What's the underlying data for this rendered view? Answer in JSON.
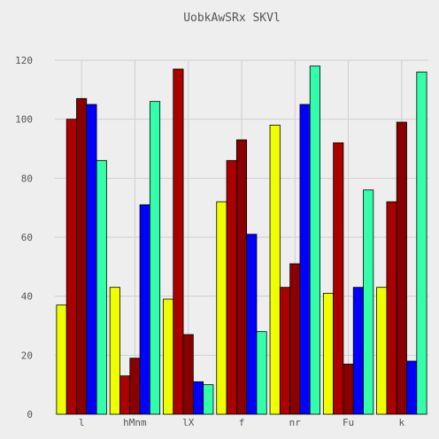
{
  "chart_data": {
    "type": "bar",
    "title": "UobkAwSRx SKVl",
    "xlabel": "",
    "ylabel": "",
    "categories": [
      "l",
      "hMnm",
      "lX",
      "f",
      "nr",
      "Fu",
      "k"
    ],
    "series": [
      {
        "color": "#eeff00",
        "values": [
          37,
          43,
          39,
          72,
          98,
          41,
          43
        ]
      },
      {
        "color": "#aa0000",
        "values": [
          100,
          13,
          117,
          86,
          43,
          92,
          72
        ]
      },
      {
        "color": "#880000",
        "values": [
          107,
          19,
          27,
          93,
          51,
          17,
          99
        ]
      },
      {
        "color": "#0000ff",
        "values": [
          105,
          71,
          11,
          61,
          105,
          43,
          18
        ]
      },
      {
        "color": "#33ffaa",
        "values": [
          86,
          106,
          10,
          28,
          118,
          76,
          116
        ]
      }
    ],
    "ylim": [
      0,
      120
    ],
    "yticks": [
      0,
      20,
      40,
      60,
      80,
      100,
      120
    ],
    "grid": true,
    "legend": "none"
  }
}
